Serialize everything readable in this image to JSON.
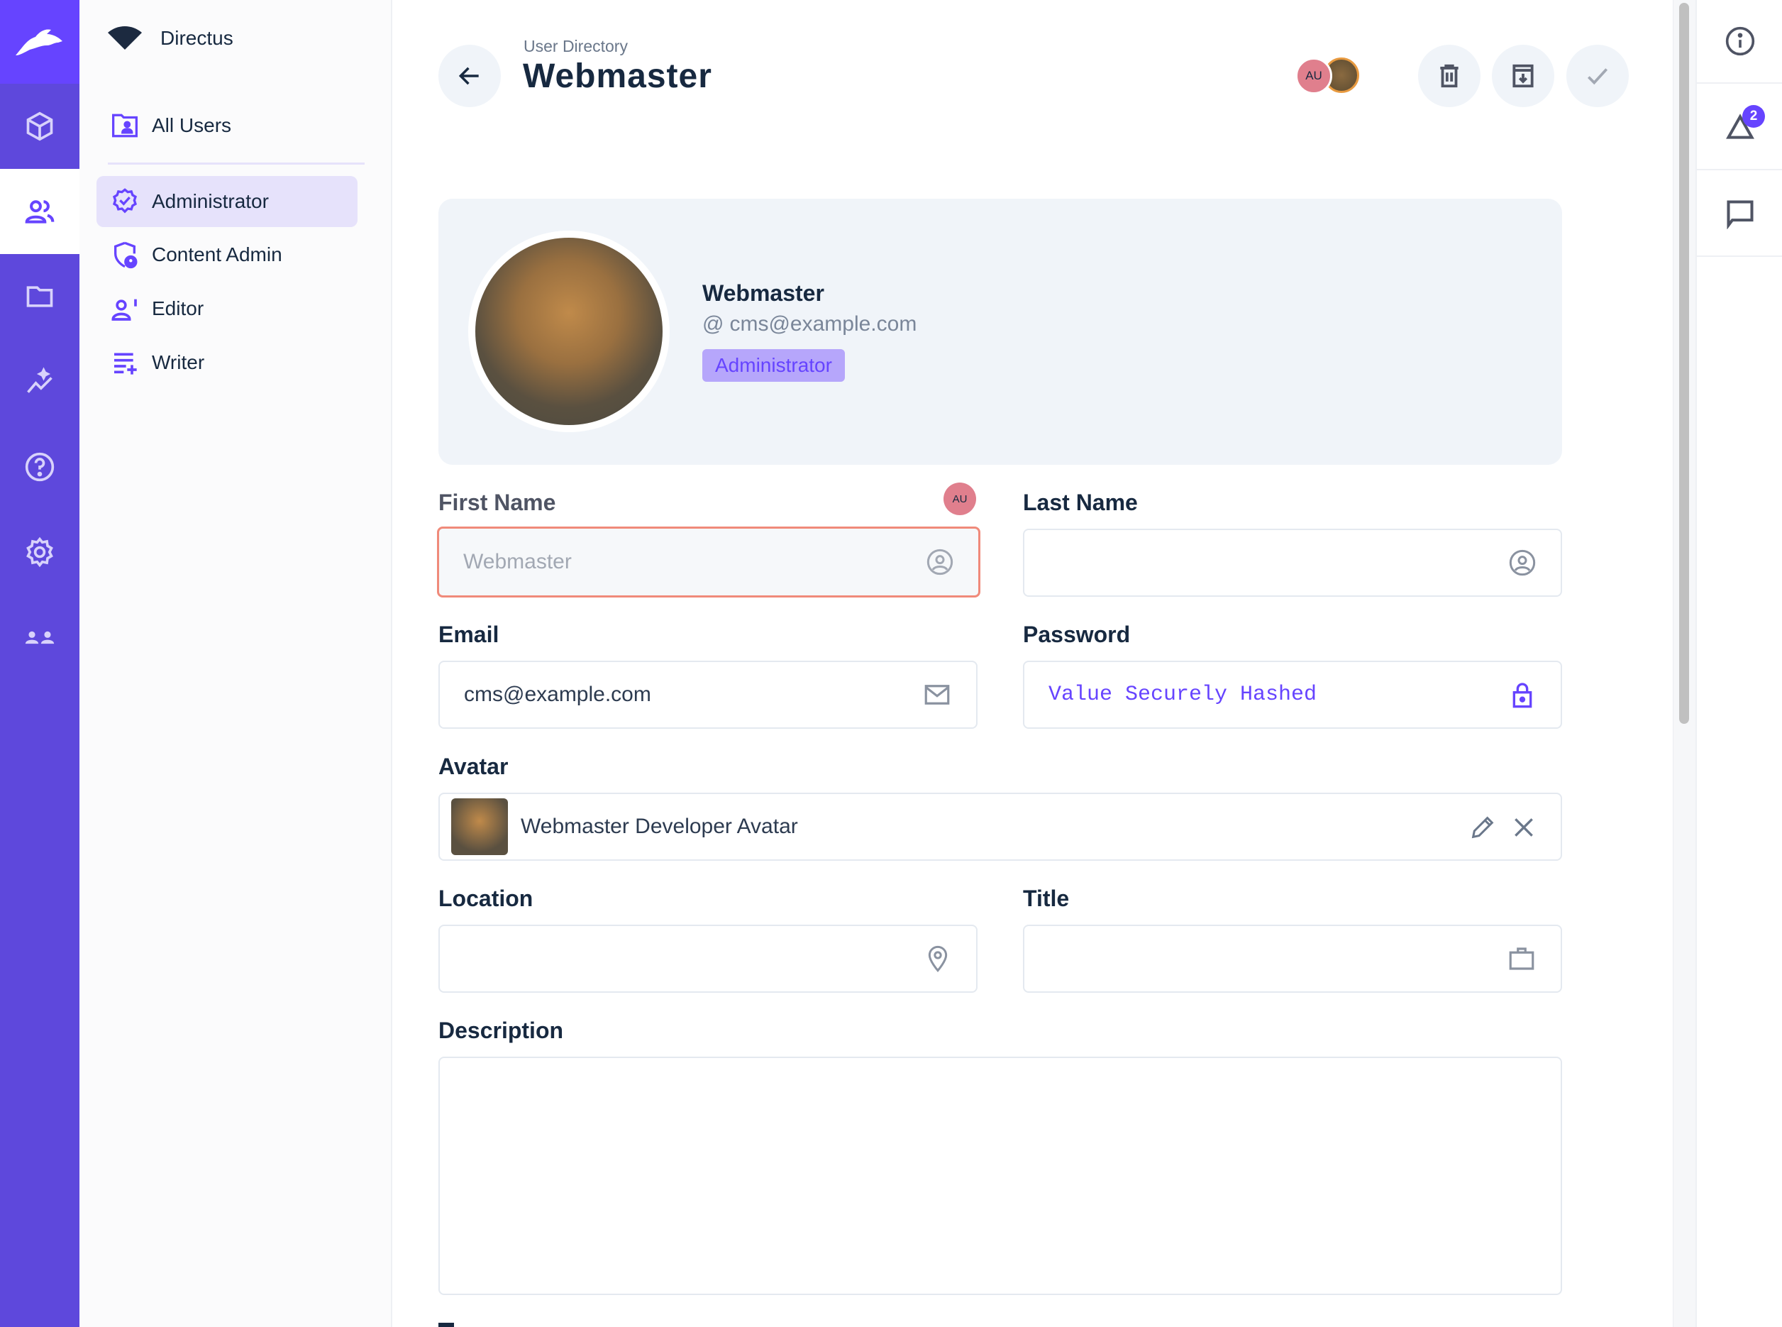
{
  "project": {
    "name": "Directus"
  },
  "rail": {
    "items": [
      "content",
      "users",
      "files",
      "insights",
      "help",
      "settings",
      "marketplace"
    ],
    "active": "users"
  },
  "sidebar": {
    "all_users": "All Users",
    "roles": [
      {
        "label": "Administrator",
        "active": true
      },
      {
        "label": "Content Admin"
      },
      {
        "label": "Editor"
      },
      {
        "label": "Writer"
      }
    ]
  },
  "header": {
    "breadcrumb": "User Directory",
    "title": "Webmaster",
    "presence_initials": "AU"
  },
  "profile": {
    "name": "Webmaster",
    "email": "cms@example.com",
    "role": "Administrator"
  },
  "fields": {
    "first_name": {
      "label": "First Name",
      "value": "Webmaster",
      "editor_initials": "AU"
    },
    "last_name": {
      "label": "Last Name",
      "value": ""
    },
    "email": {
      "label": "Email",
      "value": "cms@example.com"
    },
    "password": {
      "label": "Password",
      "value": "Value Securely Hashed"
    },
    "avatar": {
      "label": "Avatar",
      "value": "Webmaster Developer Avatar"
    },
    "location": {
      "label": "Location",
      "value": ""
    },
    "title": {
      "label": "Title",
      "value": ""
    },
    "description": {
      "label": "Description",
      "value": ""
    }
  },
  "right_sidebar": {
    "notifications_count": "2"
  },
  "colors": {
    "primary": "#6644ff",
    "rail": "#5e48dc",
    "danger_border": "#f08a7a",
    "presence": "#e07f8d"
  }
}
